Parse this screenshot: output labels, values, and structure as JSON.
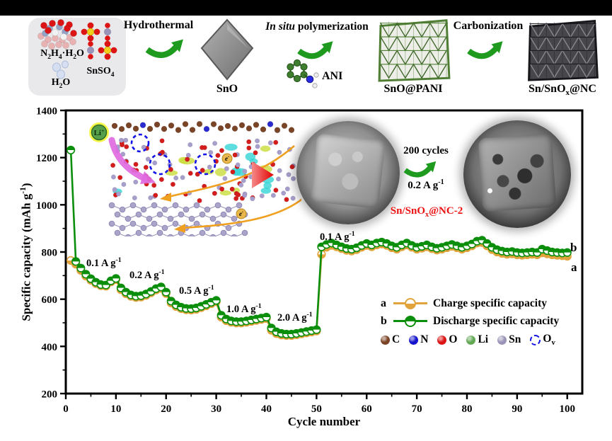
{
  "colors": {
    "arrow_green": "#1E9B1E",
    "charge": "#E1A33B",
    "discharge": "#0B8E0B",
    "red_label": "#EE1010",
    "frame": "#000000"
  },
  "scheme": {
    "box": {
      "n2h4": "N_{2}H_{4}·H_{2}O",
      "snso4": "SnSO_{4}",
      "h2o": "H_{2}O"
    },
    "hydrothermal_label": "Hydrothermal",
    "polymerization_label": "*{In situ} polymerization",
    "carbonization_label": "Carbonization",
    "sno_label": "SnO",
    "ani_label": "ANI",
    "snopani_label": "SnO@PANI",
    "snnc_label": "Sn/SnO_{x}@NC"
  },
  "inset": {
    "li": "Li^{+}",
    "e": "e^{-}",
    "cycles": "200 cycles",
    "rate": "0.2 A g^{-1}",
    "sample": "Sn/SnO_{x}@NC-2"
  },
  "chart": {
    "xlabel": "Cycle number",
    "ylabel": "Specific capacity (mAh g^{-1})",
    "rates": [
      "0.1 A g^{-1}",
      "0.2 A g^{-1}",
      "0.5 A g^{-1}",
      "1.0 A g^{-1}",
      "2.0 A g^{-1}",
      "0.1 A g^{-1}"
    ],
    "right_labels": {
      "b": "b",
      "a": "a"
    },
    "legend": {
      "a_key": "a",
      "a_text": "Charge specific capacity",
      "b_key": "b",
      "b_text": "Discharge specific capacity"
    },
    "atoms": [
      {
        "label": "C",
        "color": "#7B4426"
      },
      {
        "label": "N",
        "color": "#1414CC"
      },
      {
        "label": "O",
        "color": "#DC1414"
      },
      {
        "label": "Li",
        "color": "#62A855"
      },
      {
        "label": "Sn",
        "color": "#9C94B8"
      },
      {
        "label": "O_{v}",
        "color": "#1313E8",
        "dashed": true
      }
    ]
  },
  "chart_data": {
    "type": "line",
    "title": "",
    "xlabel": "Cycle number",
    "ylabel": "Specific capacity (mAh g-1)",
    "xlim": [
      0,
      103
    ],
    "ylim": [
      200,
      1400
    ],
    "xticks": [
      0,
      10,
      20,
      30,
      40,
      50,
      60,
      70,
      80,
      90,
      100
    ],
    "yticks": [
      200,
      400,
      600,
      800,
      1000,
      1200,
      1400
    ],
    "x_minor_step": 5,
    "y_minor_step": 100,
    "x_start": 1,
    "rate_segments": [
      {
        "rate": "0.1 A/g",
        "cycles": [
          1,
          10
        ]
      },
      {
        "rate": "0.2 A/g",
        "cycles": [
          11,
          20
        ]
      },
      {
        "rate": "0.5 A/g",
        "cycles": [
          21,
          30
        ]
      },
      {
        "rate": "1.0 A/g",
        "cycles": [
          31,
          40
        ]
      },
      {
        "rate": "2.0 A/g",
        "cycles": [
          41,
          50
        ]
      },
      {
        "rate": "0.1 A/g",
        "cycles": [
          51,
          100
        ]
      }
    ],
    "series": [
      {
        "name": "Charge specific capacity",
        "marker": "half-bottom",
        "color": "#E1A33B",
        "values": [
          764,
          748,
          722,
          698,
          680,
          666,
          657,
          655,
          673,
          683,
          640,
          623,
          612,
          607,
          609,
          616,
          627,
          639,
          646,
          624,
          584,
          569,
          560,
          555,
          554,
          557,
          564,
          572,
          581,
          589,
          524,
          509,
          502,
          499,
          499,
          502,
          506,
          510,
          514,
          518,
          468,
          454,
          448,
          446,
          446,
          449,
          453,
          457,
          461,
          465,
          790,
          820,
          828,
          822,
          814,
          807,
          804,
          810,
          820,
          828,
          822,
          830,
          834,
          828,
          818,
          812,
          822,
          830,
          820,
          812,
          816,
          822,
          814,
          808,
          812,
          818,
          824,
          818,
          812,
          818,
          826,
          838,
          840,
          826,
          810,
          800,
          794,
          790,
          792,
          788,
          786,
          788,
          790,
          788,
          796,
          792,
          788,
          786,
          784,
          782
        ]
      },
      {
        "name": "Discharge specific capacity",
        "marker": "half-top",
        "color": "#0B8E0B",
        "values": [
          1232,
          760,
          732,
          706,
          687,
          672,
          662,
          660,
          678,
          688,
          648,
          630,
          618,
          613,
          615,
          622,
          633,
          645,
          652,
          630,
          592,
          576,
          566,
          561,
          560,
          563,
          570,
          578,
          587,
          595,
          532,
          516,
          508,
          505,
          505,
          508,
          512,
          516,
          520,
          524,
          478,
          462,
          455,
          452,
          452,
          455,
          459,
          463,
          467,
          471,
          822,
          832,
          838,
          830,
          822,
          815,
          812,
          818,
          828,
          836,
          830,
          838,
          842,
          836,
          826,
          820,
          830,
          838,
          828,
          820,
          824,
          830,
          822,
          816,
          820,
          826,
          832,
          826,
          820,
          826,
          834,
          846,
          850,
          836,
          820,
          810,
          804,
          800,
          802,
          798,
          796,
          798,
          800,
          798,
          812,
          806,
          800,
          798,
          796,
          798
        ]
      }
    ]
  }
}
